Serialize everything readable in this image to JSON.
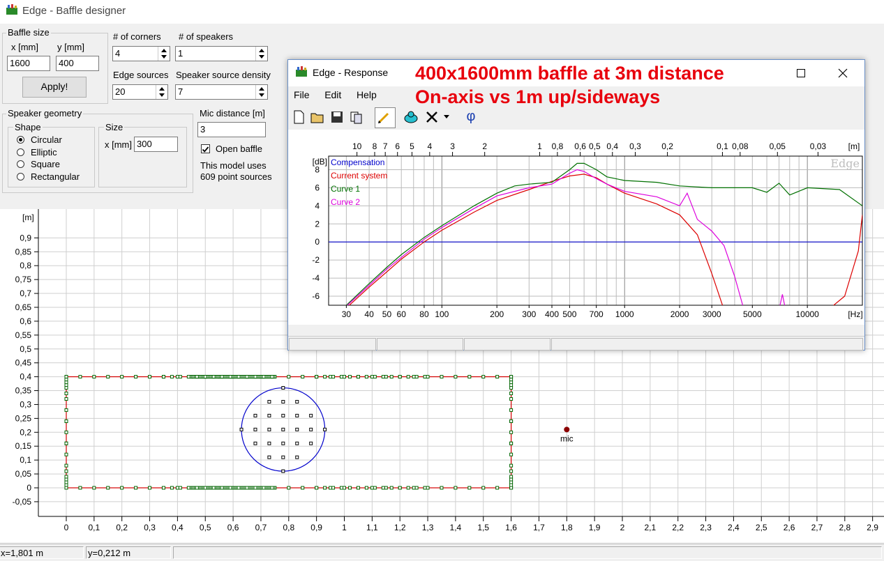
{
  "window": {
    "title": "Edge - Baffle designer"
  },
  "baffle_size": {
    "group": "Baffle size",
    "x_label": "x [mm]",
    "y_label": "y [mm]",
    "x_value": "1600",
    "y_value": "400",
    "apply_label": "Apply!"
  },
  "corners": {
    "label": "# of corners",
    "value": "4"
  },
  "speakers": {
    "label": "# of speakers",
    "value": "1"
  },
  "edge_sources": {
    "label": "Edge sources",
    "value": "20"
  },
  "source_density": {
    "label": "Speaker source density",
    "value": "7"
  },
  "speaker_geometry": {
    "group": "Speaker geometry",
    "shape_group": "Shape",
    "shapes": [
      "Circular",
      "Elliptic",
      "Square",
      "Rectangular"
    ],
    "selected_shape": "Circular",
    "size_group": "Size",
    "size_label": "x [mm]",
    "size_value": "300"
  },
  "mic": {
    "label": "Mic distance [m]",
    "value": "3",
    "open_baffle_label": "Open baffle",
    "open_baffle_checked": true,
    "info_line1": "This model uses",
    "info_line2": "609 point sources",
    "plot_label": "mic"
  },
  "status": {
    "x": "x=1,801 m",
    "y": "y=0,212 m"
  },
  "geometry_plot": {
    "y_unit": "[m]",
    "y_ticks": [
      "0,9",
      "0,85",
      "0,8",
      "0,75",
      "0,7",
      "0,65",
      "0,6",
      "0,55",
      "0,5",
      "0,45",
      "0,4",
      "0,35",
      "0,3",
      "0,25",
      "0,2",
      "0,15",
      "0,1",
      "0,05",
      "0",
      "-0,05"
    ],
    "x_ticks": [
      "0",
      "0,1",
      "0,2",
      "0,3",
      "0,4",
      "0,5",
      "0,6",
      "0,7",
      "0,8",
      "0,9",
      "1",
      "1,1",
      "1,2",
      "1,3",
      "1,4",
      "1,5",
      "1,6",
      "1,7",
      "1,8",
      "1,9",
      "2",
      "2,1",
      "2,2",
      "2,3",
      "2,4",
      "2,5",
      "2,6",
      "2,7",
      "2,8",
      "2,9"
    ],
    "baffle_m": {
      "x": [
        0,
        1.6
      ],
      "y": [
        0,
        0.4
      ]
    },
    "speaker_center_m": [
      0.78,
      0.21
    ],
    "speaker_diameter_m": 0.3,
    "mic_m": [
      1.8,
      0.21
    ],
    "edge_color": "#d40000",
    "source_color": "#006400",
    "speaker_color": "#0000cc"
  },
  "response_window": {
    "title": "Edge - Response",
    "menu": [
      "File",
      "Edit",
      "Help"
    ],
    "tools": [
      "new-icon",
      "open-icon",
      "save-icon",
      "copy-icon",
      "pen-icon",
      "cloud-icon",
      "delete-icon",
      "dropdown-icon",
      "phi-icon"
    ],
    "phi_symbol": "φ",
    "overlay_line1": "400x1600mm baffle at 3m distance",
    "overlay_line2": "On-axis vs 1m up/sideways",
    "watermark": "Edge"
  },
  "chart_data": {
    "type": "line",
    "xscale": "log",
    "xlabel": "[Hz]",
    "ylabel": "[dB]",
    "top_axis_label": "[m]",
    "xlim": [
      24,
      20000
    ],
    "ylim": [
      -7,
      9.5
    ],
    "x_ticks": [
      "30",
      "40",
      "50",
      "60",
      "80",
      "100",
      "200",
      "300",
      "400",
      "500",
      "700",
      "1000",
      "2000",
      "3000",
      "5000",
      "10000"
    ],
    "y_ticks": [
      "8",
      "6",
      "4",
      "2",
      "0",
      "-2",
      "-4",
      "-6"
    ],
    "top_ticks": [
      "10",
      "8",
      "7",
      "6",
      "5",
      "4",
      "3",
      "2",
      "1",
      "0,8",
      "0,6",
      "0,5",
      "0,4",
      "0,3",
      "0,2",
      "0,1",
      "0,08",
      "0,05",
      "0,03"
    ],
    "legend_position": "top-left",
    "series": [
      {
        "name": "Compensation",
        "color": "#0000cc",
        "points": [
          [
            24,
            0
          ],
          [
            20000,
            0
          ]
        ]
      },
      {
        "name": "Current system",
        "color": "#dd0000",
        "points": [
          [
            30,
            -7.3
          ],
          [
            40,
            -5
          ],
          [
            50,
            -3.3
          ],
          [
            60,
            -1.9
          ],
          [
            80,
            0
          ],
          [
            100,
            1.3
          ],
          [
            150,
            3.3
          ],
          [
            200,
            4.6
          ],
          [
            300,
            5.8
          ],
          [
            400,
            6.7
          ],
          [
            500,
            7.3
          ],
          [
            600,
            7.5
          ],
          [
            700,
            7.1
          ],
          [
            800,
            6.4
          ],
          [
            1000,
            5.4
          ],
          [
            1500,
            4.2
          ],
          [
            2000,
            3.0
          ],
          [
            2500,
            0.8
          ],
          [
            3000,
            -3.5
          ],
          [
            3500,
            -7.5
          ],
          [
            13000,
            -7.5
          ],
          [
            16000,
            -6
          ],
          [
            19000,
            -1
          ],
          [
            20000,
            3
          ]
        ]
      },
      {
        "name": "Curve 1",
        "color": "#007000",
        "points": [
          [
            30,
            -7
          ],
          [
            40,
            -4.6
          ],
          [
            50,
            -2.8
          ],
          [
            60,
            -1.4
          ],
          [
            80,
            0.5
          ],
          [
            100,
            1.8
          ],
          [
            150,
            4
          ],
          [
            200,
            5.4
          ],
          [
            250,
            6.2
          ],
          [
            300,
            6.4
          ],
          [
            400,
            6.6
          ],
          [
            500,
            8.0
          ],
          [
            550,
            8.7
          ],
          [
            600,
            8.7
          ],
          [
            700,
            8.0
          ],
          [
            800,
            7.2
          ],
          [
            1000,
            6.8
          ],
          [
            1500,
            6.6
          ],
          [
            2000,
            6.2
          ],
          [
            3000,
            6.0
          ],
          [
            5000,
            6.0
          ],
          [
            6000,
            5.5
          ],
          [
            7000,
            6.5
          ],
          [
            8000,
            5.2
          ],
          [
            10000,
            6.0
          ],
          [
            15000,
            5.8
          ],
          [
            20000,
            4
          ]
        ]
      },
      {
        "name": "Curve 2",
        "color": "#dd00dd",
        "points": [
          [
            30,
            -7.1
          ],
          [
            40,
            -4.8
          ],
          [
            50,
            -3
          ],
          [
            60,
            -1.7
          ],
          [
            80,
            0.3
          ],
          [
            100,
            1.6
          ],
          [
            150,
            3.7
          ],
          [
            200,
            5.1
          ],
          [
            300,
            6
          ],
          [
            400,
            6.4
          ],
          [
            500,
            7.6
          ],
          [
            550,
            8.0
          ],
          [
            600,
            7.8
          ],
          [
            700,
            7.0
          ],
          [
            800,
            6.4
          ],
          [
            1000,
            5.6
          ],
          [
            1500,
            5.0
          ],
          [
            2000,
            4.0
          ],
          [
            2200,
            5.4
          ],
          [
            2500,
            2.5
          ],
          [
            3000,
            1.2
          ],
          [
            3500,
            -0.4
          ],
          [
            4000,
            -3.8
          ],
          [
            4500,
            -7.5
          ],
          [
            7000,
            -7.5
          ],
          [
            7300,
            -5.8
          ],
          [
            7600,
            -7.5
          ],
          [
            20000,
            -7.5
          ]
        ]
      }
    ]
  }
}
